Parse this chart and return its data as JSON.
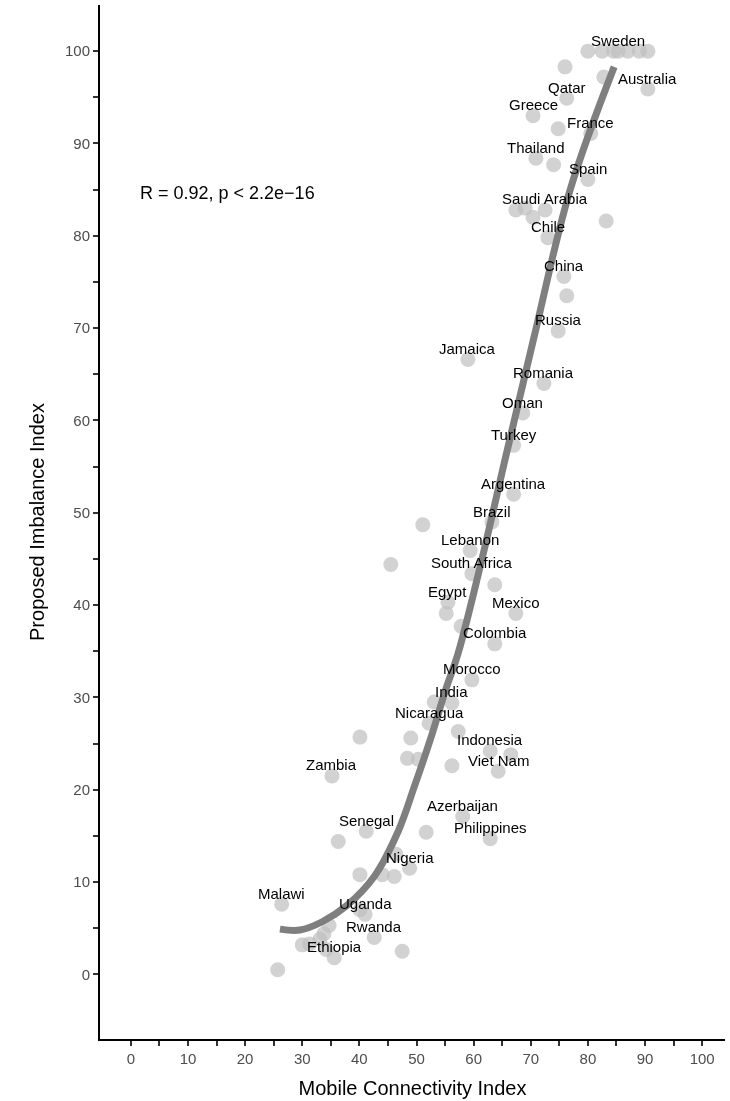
{
  "chart_data": {
    "type": "scatter",
    "xlabel": "Mobile Connectivity Index",
    "ylabel": "Proposed Imbalance Index",
    "xlim": [
      -5.4,
      104
    ],
    "ylim": [
      -7,
      105
    ],
    "xticks": [
      0,
      {
        "value": 5,
        "label": null
      },
      10,
      {
        "value": 15,
        "label": null
      },
      20,
      {
        "value": 25,
        "label": null
      },
      30,
      {
        "value": 35,
        "label": null
      },
      40,
      {
        "value": 45,
        "label": null
      },
      50,
      {
        "value": 55,
        "label": null
      },
      60,
      {
        "value": 65,
        "label": null
      },
      70,
      {
        "value": 75,
        "label": null
      },
      80,
      {
        "value": 85,
        "label": null
      },
      90,
      {
        "value": 95,
        "label": null
      },
      100
    ],
    "yticks": [
      0,
      {
        "value": 5,
        "label": null
      },
      10,
      {
        "value": 15,
        "label": null
      },
      20,
      {
        "value": 25,
        "label": null
      },
      30,
      {
        "value": 35,
        "label": null
      },
      40,
      {
        "value": 45,
        "label": null
      },
      50,
      {
        "value": 55,
        "label": null
      },
      60,
      {
        "value": 65,
        "label": null
      },
      70,
      {
        "value": 75,
        "label": null
      },
      80,
      {
        "value": 85,
        "label": null
      },
      90,
      {
        "value": 95,
        "label": null
      },
      100
    ],
    "marker": "circle",
    "series": [
      {
        "color": "#bfbfbf",
        "x": [
          80,
          82.5,
          84.5,
          85.3,
          87,
          89,
          90.5,
          76,
          82.8,
          76.3,
          90.5,
          70.4,
          74.8,
          80.5,
          70.9,
          74,
          80,
          67.4,
          69,
          72.5,
          70.4,
          83.2,
          73,
          75.8,
          76.3,
          74.8,
          59,
          72.3,
          68.6,
          67,
          67,
          63.2,
          51.1,
          59.4,
          45.5,
          59.7,
          63.7,
          55.5,
          55.2,
          67.4,
          57.8,
          63.7,
          59.7,
          53.1,
          56.2,
          52.2,
          57.3,
          49,
          40.1,
          62.9,
          66.5,
          48.4,
          50.3,
          56.2,
          64.3,
          35.2,
          58.1,
          62.9,
          51.7,
          41.2,
          36.3,
          46.4,
          48.8,
          40.1,
          44,
          46.1,
          26.4,
          40.1,
          41,
          34.7,
          33.8,
          33.1,
          31.3,
          30,
          42.6,
          34.2,
          35.6,
          47.5,
          25.7
        ],
        "values": [
          100,
          100,
          100,
          100,
          100,
          100,
          100,
          98.3,
          97.2,
          94.9,
          95.9,
          93,
          91.6,
          91.1,
          88.4,
          87.7,
          86.1,
          82.8,
          83,
          82.8,
          82,
          81.6,
          79.8,
          75.6,
          73.5,
          69.7,
          66.6,
          64,
          60.8,
          57.3,
          52,
          49,
          48.7,
          45.9,
          44.4,
          43.4,
          42.2,
          40.3,
          39.1,
          39.1,
          37.7,
          35.8,
          31.9,
          29.5,
          29.4,
          27.2,
          26.3,
          25.6,
          25.7,
          24.2,
          23.8,
          23.4,
          23.3,
          22.6,
          22,
          21.5,
          17.1,
          14.7,
          15.4,
          15.5,
          14.4,
          13,
          11.5,
          10.8,
          10.8,
          10.6,
          7.6,
          7,
          6.5,
          5.3,
          4.4,
          3.8,
          3.3,
          3.2,
          4,
          2.7,
          1.8,
          2.5,
          0.5
        ]
      },
      {
        "type": "line",
        "marker": "none",
        "color": "#7f7f7f",
        "x": [
          26.1,
          29.6,
          33.5,
          37.7,
          42.6,
          46.8,
          49.6,
          52.4,
          55.2,
          57.3,
          61.5,
          65.7,
          70.6,
          76.9,
          84.6
        ],
        "values": [
          4.9,
          4.8,
          5.7,
          7.4,
          10.6,
          15.5,
          20.3,
          25.4,
          31,
          34.8,
          45.1,
          56.3,
          69.1,
          85,
          98.3
        ]
      }
    ],
    "annotations": [
      "R = 0.92, p < 2.2e−16",
      {
        "text": "Sweden",
        "x": 85.3,
        "y": 100
      },
      {
        "text": "Qatar",
        "x": 76.3,
        "y": 94.9
      },
      {
        "text": "Australia",
        "x": 90.5,
        "y": 95.9
      },
      {
        "text": "Greece",
        "x": 70.4,
        "y": 93
      },
      {
        "text": "France",
        "x": 80.5,
        "y": 91.1
      },
      {
        "text": "Thailand",
        "x": 70.9,
        "y": 88.4
      },
      {
        "text": "Spain",
        "x": 80,
        "y": 86.1
      },
      {
        "text": "Saudi Arabia",
        "x": 72.5,
        "y": 82.8
      },
      {
        "text": "Chile",
        "x": 73,
        "y": 79.8
      },
      {
        "text": "China",
        "x": 75.8,
        "y": 75.6
      },
      {
        "text": "Russia",
        "x": 74.8,
        "y": 69.7
      },
      {
        "text": "Jamaica",
        "x": 59,
        "y": 66.6
      },
      {
        "text": "Romania",
        "x": 72.3,
        "y": 64
      },
      {
        "text": "Oman",
        "x": 68.6,
        "y": 60.8
      },
      {
        "text": "Turkey",
        "x": 67,
        "y": 57.3
      },
      {
        "text": "Argentina",
        "x": 67,
        "y": 52
      },
      {
        "text": "Brazil",
        "x": 63.2,
        "y": 49
      },
      {
        "text": "Lebanon",
        "x": 59.4,
        "y": 45.9
      },
      {
        "text": "South Africa",
        "x": 59.7,
        "y": 43.4
      },
      {
        "text": "Egypt",
        "x": 55.5,
        "y": 40.3
      },
      {
        "text": "Mexico",
        "x": 67.4,
        "y": 39.1
      },
      {
        "text": "Colombia",
        "x": 63.7,
        "y": 35.8
      },
      {
        "text": "Morocco",
        "x": 59.7,
        "y": 31.9
      },
      {
        "text": "India",
        "x": 56.2,
        "y": 29.4
      },
      {
        "text": "Nicaragua",
        "x": 52.2,
        "y": 27.2
      },
      {
        "text": "Indonesia",
        "x": 62.9,
        "y": 24.2
      },
      {
        "text": "Viet Nam",
        "x": 64.3,
        "y": 22
      },
      {
        "text": "Zambia",
        "x": 35.2,
        "y": 21.5
      },
      {
        "text": "Azerbaijan",
        "x": 58.1,
        "y": 17.1
      },
      {
        "text": "Philippines",
        "x": 62.9,
        "y": 14.7
      },
      {
        "text": "Senegal",
        "x": 41.2,
        "y": 15.5
      },
      {
        "text": "Nigeria",
        "x": 48.8,
        "y": 11.5
      },
      {
        "text": "Malawi",
        "x": 26.4,
        "y": 7.6
      },
      {
        "text": "Uganda",
        "x": 41,
        "y": 6.5
      },
      {
        "text": "Rwanda",
        "x": 42.6,
        "y": 4
      },
      {
        "text": "Ethiopia",
        "x": 35.6,
        "y": 1.8
      }
    ]
  }
}
